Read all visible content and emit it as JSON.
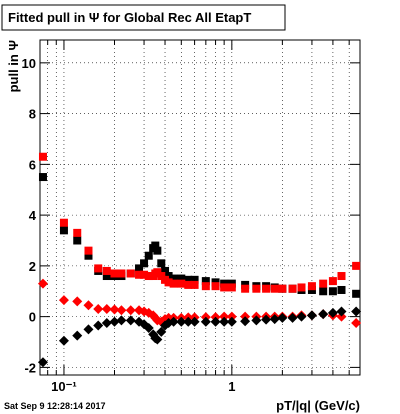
{
  "chart_data": {
    "type": "scatter",
    "title": "Fitted pull in  Ψ  for Global Rec All EtapT",
    "ylabel": "pull in Ψ",
    "xlabel": "pT/|q| (GeV/c)",
    "footer": "Sat Sep  9 12:28:14 2017",
    "log_x": true,
    "grid": true,
    "xlim": [
      0.072,
      5.8
    ],
    "ylim": [
      -2.3,
      10.9
    ],
    "xticks": [
      {
        "value": 0.1,
        "label": "10⁻¹"
      },
      1
    ],
    "xminor": [
      0.08,
      0.09,
      0.2,
      0.3,
      0.4,
      0.5,
      0.6,
      0.7,
      0.8,
      0.9,
      2,
      3,
      4,
      5
    ],
    "yticks": [
      -2,
      0,
      2,
      4,
      6,
      8,
      10
    ],
    "x": [
      0.075,
      0.1,
      0.12,
      0.14,
      0.16,
      0.18,
      0.2,
      0.22,
      0.25,
      0.28,
      0.3,
      0.32,
      0.34,
      0.35,
      0.36,
      0.38,
      0.4,
      0.42,
      0.45,
      0.5,
      0.55,
      0.6,
      0.7,
      0.8,
      0.9,
      1.0,
      1.2,
      1.4,
      1.6,
      1.8,
      2.0,
      2.3,
      2.6,
      3.0,
      3.5,
      4.0,
      4.5,
      5.5
    ],
    "series": [
      {
        "color": "#000000",
        "marker": "square",
        "values": [
          5.5,
          3.4,
          3.0,
          2.4,
          1.8,
          1.6,
          1.6,
          1.6,
          1.7,
          1.9,
          2.1,
          2.4,
          2.7,
          2.8,
          2.6,
          2.1,
          1.8,
          1.6,
          1.5,
          1.5,
          1.45,
          1.45,
          1.4,
          1.35,
          1.3,
          1.3,
          1.25,
          1.2,
          1.2,
          1.15,
          1.1,
          1.1,
          1.05,
          1.05,
          1.0,
          1.0,
          1.05,
          0.9
        ]
      },
      {
        "color": "#ff0000",
        "marker": "square",
        "values": [
          6.3,
          3.7,
          3.3,
          2.6,
          1.9,
          1.8,
          1.7,
          1.7,
          1.7,
          1.65,
          1.65,
          1.6,
          1.6,
          1.7,
          1.75,
          1.6,
          1.45,
          1.35,
          1.3,
          1.3,
          1.25,
          1.25,
          1.2,
          1.2,
          1.15,
          1.15,
          1.1,
          1.1,
          1.1,
          1.1,
          1.1,
          1.1,
          1.15,
          1.2,
          1.3,
          1.4,
          1.6,
          2.0
        ]
      },
      {
        "color": "#ff0000",
        "marker": "diamond",
        "values": [
          1.3,
          0.65,
          0.6,
          0.45,
          0.3,
          0.3,
          0.28,
          0.25,
          0.25,
          0.25,
          0.2,
          0.15,
          0.05,
          -0.05,
          -0.15,
          -0.2,
          -0.1,
          -0.05,
          -0.05,
          -0.05,
          -0.03,
          -0.03,
          -0.02,
          -0.02,
          0,
          0,
          0,
          0,
          0,
          0,
          0,
          0,
          0.05,
          0.05,
          0.1,
          0.05,
          0,
          -0.25
        ]
      },
      {
        "color": "#000000",
        "marker": "diamond",
        "values": [
          -1.8,
          -0.95,
          -0.75,
          -0.5,
          -0.35,
          -0.25,
          -0.2,
          -0.15,
          -0.15,
          -0.2,
          -0.3,
          -0.45,
          -0.7,
          -0.85,
          -0.9,
          -0.6,
          -0.35,
          -0.25,
          -0.2,
          -0.2,
          -0.2,
          -0.2,
          -0.2,
          -0.2,
          -0.2,
          -0.2,
          -0.18,
          -0.15,
          -0.12,
          -0.1,
          -0.05,
          -0.05,
          0,
          0.05,
          0.1,
          0.15,
          0.2,
          0.2
        ]
      }
    ]
  }
}
